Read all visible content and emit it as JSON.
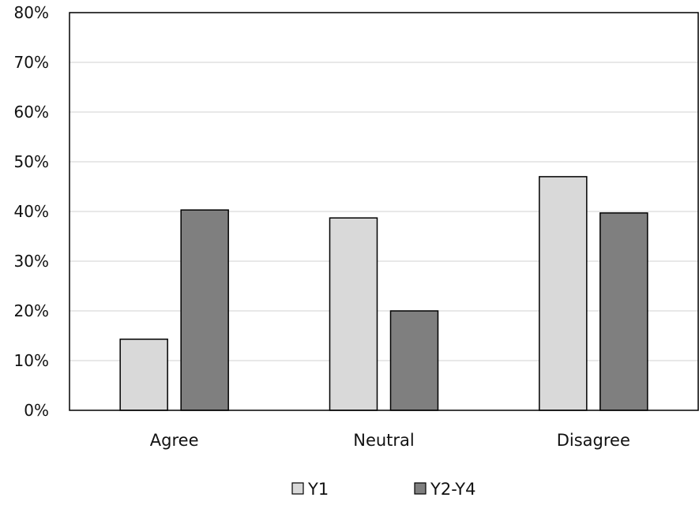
{
  "chart_data": {
    "type": "bar",
    "categories": [
      "Agree",
      "Neutral",
      "Disagree"
    ],
    "series": [
      {
        "name": "Y1",
        "values": [
          14.3,
          38.7,
          47.0
        ],
        "color": "#d9d9d9"
      },
      {
        "name": "Y2-Y4",
        "values": [
          40.3,
          20.0,
          39.7
        ],
        "color": "#7f7f7f"
      }
    ],
    "y_ticks": [
      "0%",
      "10%",
      "20%",
      "30%",
      "40%",
      "50%",
      "60%",
      "70%",
      "80%"
    ],
    "ylim": [
      0,
      80
    ],
    "grid": true,
    "legend_position": "bottom",
    "colors": {
      "grid": "#d9d9d9",
      "axis": "#000000",
      "bar_outline": "#000000"
    }
  }
}
